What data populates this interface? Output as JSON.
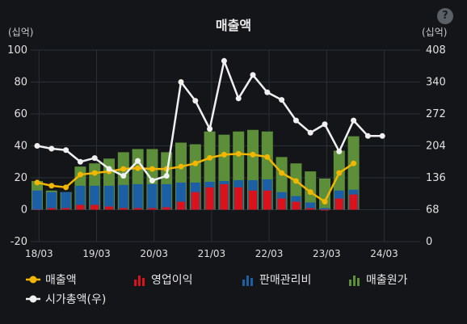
{
  "header": {
    "help_icon": "?"
  },
  "chart_data": {
    "type": "bar",
    "title": "매출액",
    "left_unit": "(십억)",
    "right_unit": "(십억)",
    "y_left": {
      "min": -20,
      "max": 100,
      "ticks": [
        -20,
        0,
        20,
        40,
        60,
        80,
        100
      ]
    },
    "y_right": {
      "min": 0,
      "max": 408,
      "ticks": [
        0,
        68,
        136,
        204,
        272,
        340,
        408
      ]
    },
    "x_ticks": [
      "18/03",
      "19/03",
      "20/03",
      "21/03",
      "22/03",
      "23/03",
      "24/03"
    ],
    "quarters_per_year": 4,
    "series": [
      {
        "name": "매출액",
        "type": "line",
        "color": "#f2b500",
        "axis": "left",
        "values": [
          17,
          15,
          14,
          22,
          23,
          24,
          25.5,
          26,
          25.5,
          25.5,
          27,
          29,
          32.5,
          34.5,
          35,
          34.5,
          33,
          23,
          18,
          11,
          5,
          23,
          29
        ]
      },
      {
        "name": "영업이익",
        "type": "bar",
        "color": "#d9121c",
        "axis": "left",
        "values": [
          0,
          1,
          1,
          3,
          3,
          2,
          1,
          1,
          1,
          1.5,
          5,
          11,
          14,
          16,
          14,
          12,
          12,
          7,
          5,
          1,
          -0.5,
          7,
          9.5
        ]
      },
      {
        "name": "판매관리비",
        "type": "bar",
        "color": "#1d5fa4",
        "axis": "left",
        "values": [
          12,
          11,
          11,
          15,
          15,
          15,
          15.5,
          16,
          16,
          16,
          17,
          17,
          17.5,
          18,
          18.5,
          18.5,
          19,
          11,
          8.5,
          4.5,
          1,
          12,
          12.5
        ]
      },
      {
        "name": "매출원가",
        "type": "bar",
        "color": "#5d8f3a",
        "axis": "left",
        "values": [
          18,
          12,
          11,
          27,
          29,
          32,
          36,
          38,
          38,
          36,
          42,
          41,
          49,
          47,
          49,
          50,
          49,
          33,
          29,
          24,
          19.5,
          37,
          46
        ]
      },
      {
        "name": "시가총액(우)",
        "type": "line",
        "color": "#f0f0f0",
        "axis": "right",
        "values": [
          204,
          198,
          195,
          170,
          178,
          155,
          140,
          172,
          130,
          140,
          340,
          300,
          240,
          385,
          305,
          355,
          318,
          302,
          258,
          232,
          250,
          192,
          258,
          225,
          225
        ]
      }
    ],
    "legend": [
      "매출액",
      "영업이익",
      "판매관리비",
      "매출원가",
      "시가총액(우)"
    ],
    "legend_position": "bottom",
    "grid": true
  }
}
